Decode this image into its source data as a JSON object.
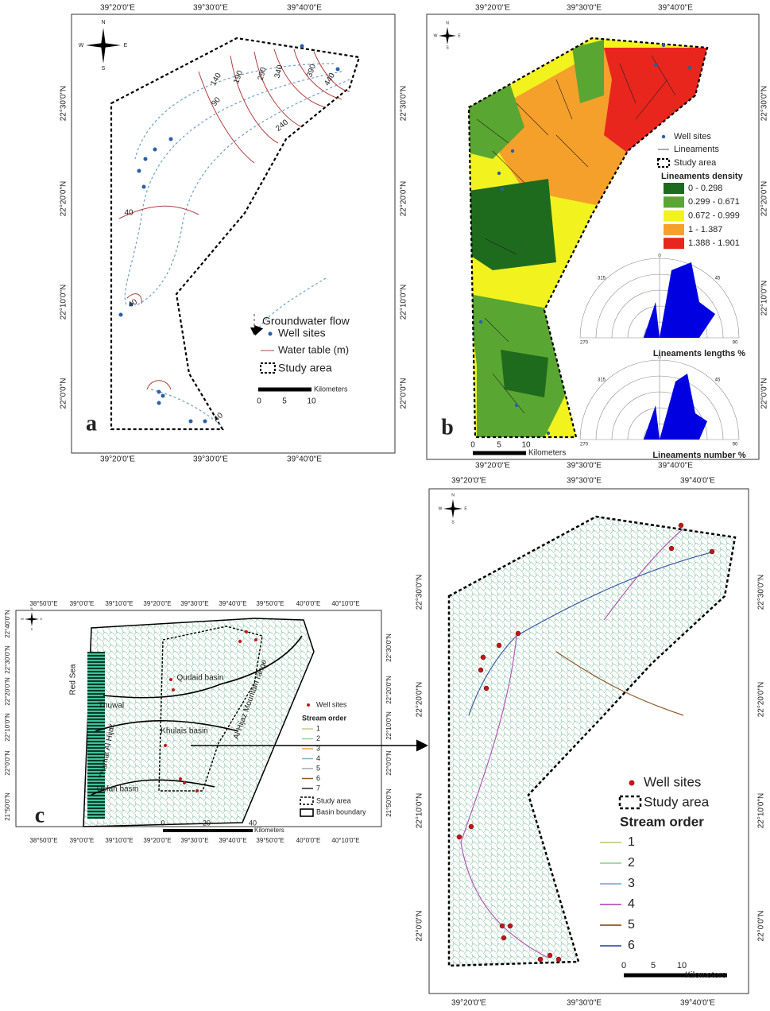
{
  "compass": [
    "N",
    "S",
    "E",
    "W"
  ],
  "panels": [
    {
      "label": "a",
      "top": [
        "39°20'0\"E",
        "39°30'0\"E",
        "39°40'0\"E"
      ],
      "bottom": [
        "39°20'0\"E",
        "39°30'0\"E",
        "39°40'0\"E"
      ],
      "left": [
        "22°30'0\"N",
        "22°20'0\"N",
        "22°10'0\"N",
        "22°0'0\"N"
      ],
      "right": [
        "22°30'0\"N",
        "22°20'0\"N",
        "22°10'0\"N",
        "22°0'0\"N"
      ],
      "contours": [
        "140",
        "190",
        "290",
        "340",
        "390",
        "440",
        "90",
        "240",
        "40",
        "40",
        "40"
      ],
      "legend": [
        "Groundwater flow",
        "Well sites",
        "Water table (m)",
        "Study area"
      ],
      "scale": [
        "0",
        "5",
        "10"
      ],
      "scale_unit": "Kilometers"
    },
    {
      "label": "b",
      "top": [
        "39°20'0\"E",
        "39°30'0\"E",
        "39°40'0\"E"
      ],
      "bottom": [
        "39°20'0\"E",
        "39°30'0\"E",
        "39°40'0\"E"
      ],
      "right": [
        "22°30'0\"N",
        "22°20'0\"N",
        "22°10'0\"N",
        "22°0'0\"N"
      ],
      "legend": [
        "Well sites",
        "Lineaments",
        "Study area"
      ],
      "density_title": "Lineaments density",
      "classes": [
        {
          "label": "0 - 0.298",
          "color": "#1e6b1e"
        },
        {
          "label": "0.299 - 0.671",
          "color": "#5aa632"
        },
        {
          "label": "0.672 - 0.999",
          "color": "#f2f21e"
        },
        {
          "label": "1 - 1.387",
          "color": "#f5a02a"
        },
        {
          "label": "1.388 - 1.901",
          "color": "#e8261e"
        }
      ],
      "roses": [
        {
          "title": "Lineaments lengths %",
          "angles": [
            "0",
            "315",
            "45",
            "270",
            "90"
          ]
        },
        {
          "title": "Lineaments number %",
          "angles": [
            "0",
            "315",
            "45",
            "270",
            "90"
          ]
        }
      ],
      "scale": [
        "0",
        "5",
        "10"
      ],
      "scale_unit": "Kilometers"
    },
    {
      "label": "c",
      "top": [
        "38°50'0\"E",
        "39°0'0\"E",
        "39°10'0\"E",
        "39°20'0\"E",
        "39°30'0\"E",
        "39°40'0\"E",
        "39°50'0\"E",
        "40°0'0\"E",
        "40°10'0\"E"
      ],
      "bottom": [
        "38°50'0\"E",
        "39°0'0\"E",
        "39°10'0\"E",
        "39°20'0\"E",
        "39°30'0\"E",
        "39°40'0\"E",
        "39°50'0\"E",
        "40°0'0\"E",
        "40°10'0\"E"
      ],
      "left": [
        "22°40'0\"N",
        "22°30'0\"N",
        "22°20'0\"N",
        "22°10'0\"N",
        "22°0'0\"N",
        "21°50'0\"N"
      ],
      "right": [
        "22°30'0\"N",
        "22°20'0\"N",
        "22°10'0\"N",
        "22°0'0\"N",
        "21°50'0\"N"
      ],
      "places": [
        "Red Sea",
        "Thuwal",
        "Qudaid basin",
        "Khulais basin",
        "Usfan basin",
        "Thamat Al Hijaz",
        "Al Hijaz Mountain range"
      ],
      "well_label": "Well sites",
      "order_title": "Stream order",
      "orders": [
        {
          "label": "1",
          "color": "#c8c88a"
        },
        {
          "label": "2",
          "color": "#9bd39b"
        },
        {
          "label": "3",
          "color": "#e0a040"
        },
        {
          "label": "4",
          "color": "#7fb3c8"
        },
        {
          "label": "5",
          "color": "#9fa8b0"
        },
        {
          "label": "6",
          "color": "#8b5a2b"
        },
        {
          "label": "7",
          "color": "#222222"
        }
      ],
      "extra_legend": [
        "Study area",
        "Basin boundary"
      ],
      "scale": [
        "0",
        "20",
        "40"
      ],
      "scale_unit": "Kilometers"
    },
    {
      "top": [
        "39°20'0\"E",
        "39°30'0\"E",
        "39°40'0\"E"
      ],
      "bottom": [
        "39°20'0\"E",
        "39°30'0\"E",
        "39°40'0\"E"
      ],
      "left": [
        "22°30'0\"N",
        "22°20'0\"N",
        "22°10'0\"N",
        "22°0'0\"N"
      ],
      "right": [
        "22°30'0\"N",
        "22°20'0\"N",
        "22°10'0\"N",
        "22°0'0\"N"
      ],
      "well_label": "Well sites",
      "study_label": "Study area",
      "order_title": "Stream order",
      "orders": [
        {
          "label": "1",
          "color": "#c8c88a"
        },
        {
          "label": "2",
          "color": "#9bd39b"
        },
        {
          "label": "3",
          "color": "#7fb3c8"
        },
        {
          "label": "4",
          "color": "#b45ab4"
        },
        {
          "label": "5",
          "color": "#8b5a2b"
        },
        {
          "label": "6",
          "color": "#3b5ba8"
        }
      ],
      "scale": [
        "0",
        "5",
        "10"
      ],
      "scale_unit": "Kilometers"
    }
  ]
}
